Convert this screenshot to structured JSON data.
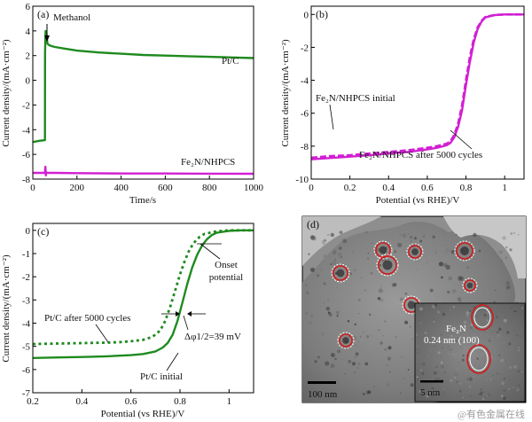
{
  "watermark": "@有色金属在线",
  "chart_data": [
    {
      "panel": "(a)",
      "type": "line",
      "xlabel": "Time/s",
      "ylabel": "Current density/(mA·cm⁻²)",
      "xlim": [
        0,
        1000
      ],
      "ylim": [
        -8,
        6
      ],
      "xticks": [
        0,
        200,
        400,
        600,
        800,
        1000
      ],
      "yticks": [
        -8,
        -6,
        -4,
        -2,
        0,
        2,
        4,
        6
      ],
      "annotations": [
        {
          "text": "Methanol",
          "x": 60,
          "y": 4.1,
          "arrow": true
        }
      ],
      "series": [
        {
          "name": "Pt/C",
          "color": "#1f8a1f",
          "style": "solid",
          "x": [
            0,
            30,
            55,
            55.5,
            58,
            60,
            62,
            64,
            66,
            70,
            80,
            100,
            150,
            200,
            300,
            400,
            500,
            600,
            700,
            800,
            900,
            1000
          ],
          "y": [
            -5.0,
            -4.9,
            -4.85,
            2.2,
            4.0,
            3.6,
            3.8,
            3.4,
            3.0,
            2.9,
            2.8,
            2.7,
            2.55,
            2.4,
            2.25,
            2.15,
            2.05,
            2.0,
            1.95,
            1.9,
            1.85,
            1.8
          ]
        },
        {
          "name": "Fe₂N/NHPCS",
          "color": "#d21fd2",
          "style": "solid",
          "x": [
            0,
            40,
            55,
            57,
            59,
            61,
            65,
            100,
            200,
            400,
            600,
            800,
            1000
          ],
          "y": [
            -7.5,
            -7.5,
            -7.5,
            -7.0,
            -7.7,
            -7.45,
            -7.5,
            -7.5,
            -7.52,
            -7.55,
            -7.55,
            -7.56,
            -7.57
          ]
        }
      ]
    },
    {
      "panel": "(b)",
      "type": "line",
      "xlabel": "Potential (vs RHE)/V",
      "ylabel": "Current density/(mA·cm⁻²)",
      "xlim": [
        0,
        1.1
      ],
      "ylim": [
        -10,
        0.5
      ],
      "xticks": [
        0,
        0.2,
        0.4,
        0.6,
        0.8,
        1.0
      ],
      "yticks": [
        -10,
        -8,
        -6,
        -4,
        -2,
        0
      ],
      "series": [
        {
          "name": "Fe₂N/NHPCS initial",
          "color": "#d21fd2",
          "style": "dashed",
          "x": [
            0.0,
            0.1,
            0.2,
            0.3,
            0.4,
            0.5,
            0.6,
            0.65,
            0.7,
            0.72,
            0.74,
            0.76,
            0.78,
            0.8,
            0.82,
            0.84,
            0.86,
            0.88,
            0.9,
            0.95,
            1.0,
            1.05,
            1.1
          ],
          "y": [
            -8.7,
            -8.6,
            -8.55,
            -8.45,
            -8.35,
            -8.25,
            -8.1,
            -8.0,
            -7.85,
            -7.7,
            -7.3,
            -6.6,
            -5.5,
            -4.0,
            -2.6,
            -1.5,
            -0.8,
            -0.4,
            -0.15,
            -0.03,
            0.0,
            0.0,
            0.0
          ]
        },
        {
          "name": "Fe₂N/NHPCS after 5000 cycles",
          "color": "#d21fd2",
          "style": "solid",
          "x": [
            0.0,
            0.1,
            0.2,
            0.3,
            0.4,
            0.5,
            0.6,
            0.65,
            0.7,
            0.72,
            0.74,
            0.76,
            0.78,
            0.8,
            0.82,
            0.84,
            0.86,
            0.88,
            0.9,
            0.95,
            1.0,
            1.05,
            1.1
          ],
          "y": [
            -8.8,
            -8.72,
            -8.64,
            -8.55,
            -8.45,
            -8.35,
            -8.2,
            -8.1,
            -7.95,
            -7.8,
            -7.45,
            -6.8,
            -5.8,
            -4.3,
            -2.9,
            -1.7,
            -0.9,
            -0.45,
            -0.18,
            -0.04,
            0.0,
            0.0,
            0.0
          ]
        }
      ]
    },
    {
      "panel": "(c)",
      "type": "line",
      "xlabel": "Potential (vs RHE)/V",
      "ylabel": "Current density/(mA·cm⁻²)",
      "xlim": [
        0.2,
        1.1
      ],
      "ylim": [
        -7,
        0.3
      ],
      "xticks": [
        0.2,
        0.4,
        0.6,
        0.8,
        1.0
      ],
      "yticks": [
        -7,
        -6,
        -5,
        -4,
        -3,
        -2,
        -1,
        0
      ],
      "annotations": [
        {
          "text": "Onset",
          "x": 1.0,
          "y": -0.8
        },
        {
          "text": "potential",
          "x": 1.0,
          "y": -1.2
        },
        {
          "text": "Δφ1/2=39 mV",
          "x": 0.87,
          "y": -4.4
        }
      ],
      "series": [
        {
          "name": "Pt/C after 5000 cycles",
          "color": "#1f8a1f",
          "style": "dotted",
          "x": [
            0.2,
            0.3,
            0.4,
            0.5,
            0.55,
            0.6,
            0.65,
            0.68,
            0.7,
            0.72,
            0.74,
            0.76,
            0.78,
            0.8,
            0.82,
            0.84,
            0.86,
            0.88,
            0.9,
            0.95,
            1.0,
            1.05,
            1.1
          ],
          "y": [
            -4.9,
            -4.88,
            -4.86,
            -4.84,
            -4.82,
            -4.78,
            -4.72,
            -4.62,
            -4.5,
            -4.3,
            -3.9,
            -3.3,
            -2.6,
            -1.9,
            -1.3,
            -0.8,
            -0.5,
            -0.28,
            -0.15,
            -0.04,
            0.0,
            0.0,
            0.0
          ]
        },
        {
          "name": "Pt/C initial",
          "color": "#1f8a1f",
          "style": "solid",
          "x": [
            0.2,
            0.3,
            0.4,
            0.5,
            0.6,
            0.65,
            0.7,
            0.73,
            0.75,
            0.77,
            0.79,
            0.81,
            0.83,
            0.85,
            0.87,
            0.89,
            0.91,
            0.93,
            0.95,
            1.0,
            1.05,
            1.1
          ],
          "y": [
            -5.5,
            -5.48,
            -5.46,
            -5.43,
            -5.38,
            -5.33,
            -5.22,
            -5.05,
            -4.85,
            -4.5,
            -3.9,
            -3.1,
            -2.3,
            -1.6,
            -1.05,
            -0.65,
            -0.38,
            -0.2,
            -0.1,
            -0.02,
            0.0,
            0.0
          ]
        }
      ]
    }
  ],
  "tem": {
    "panel": "(d)",
    "scalebar_main": "100 nm",
    "scalebar_inset": "5 nm",
    "inset_label_line1": "Fe₂N",
    "inset_label_line2": "0.24 nm (100)"
  }
}
